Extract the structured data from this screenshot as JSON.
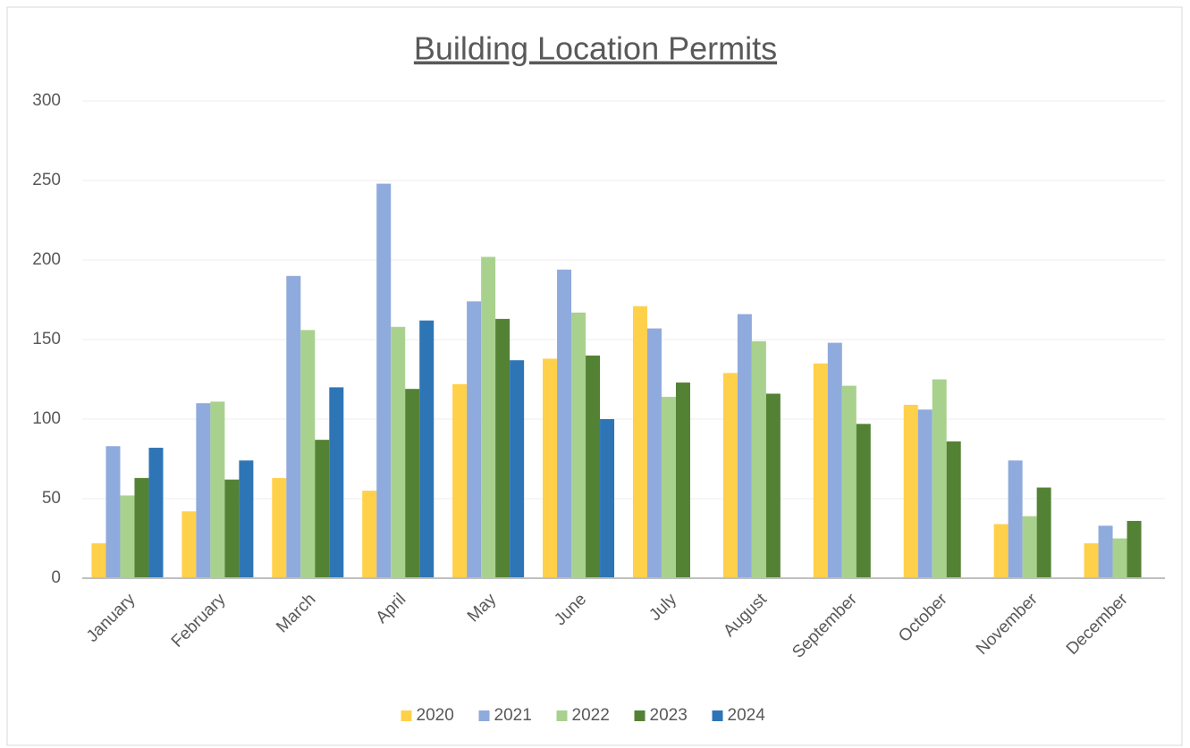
{
  "chart_data": {
    "type": "bar",
    "title": "Building Location Permits",
    "categories": [
      "January",
      "February",
      "March",
      "April",
      "May",
      "June",
      "July",
      "August",
      "September",
      "October",
      "November",
      "December"
    ],
    "series": [
      {
        "name": "2020",
        "color": "#ffd04a",
        "values": [
          22,
          42,
          63,
          55,
          122,
          138,
          171,
          129,
          135,
          109,
          34,
          22
        ]
      },
      {
        "name": "2021",
        "color": "#8faadc",
        "values": [
          83,
          110,
          190,
          248,
          174,
          194,
          157,
          166,
          148,
          106,
          74,
          33
        ]
      },
      {
        "name": "2022",
        "color": "#a9d18e",
        "values": [
          52,
          111,
          156,
          158,
          202,
          167,
          114,
          149,
          121,
          125,
          39,
          25
        ]
      },
      {
        "name": "2023",
        "color": "#548235",
        "values": [
          63,
          62,
          87,
          119,
          163,
          140,
          123,
          116,
          97,
          86,
          57,
          36
        ]
      },
      {
        "name": "2024",
        "color": "#2e75b6",
        "values": [
          82,
          74,
          120,
          162,
          137,
          100,
          null,
          null,
          null,
          null,
          null,
          null
        ]
      }
    ],
    "ylim": [
      0,
      300
    ],
    "yticks": [
      0,
      50,
      100,
      150,
      200,
      250,
      300
    ],
    "grid": true,
    "legend": "bottom"
  }
}
